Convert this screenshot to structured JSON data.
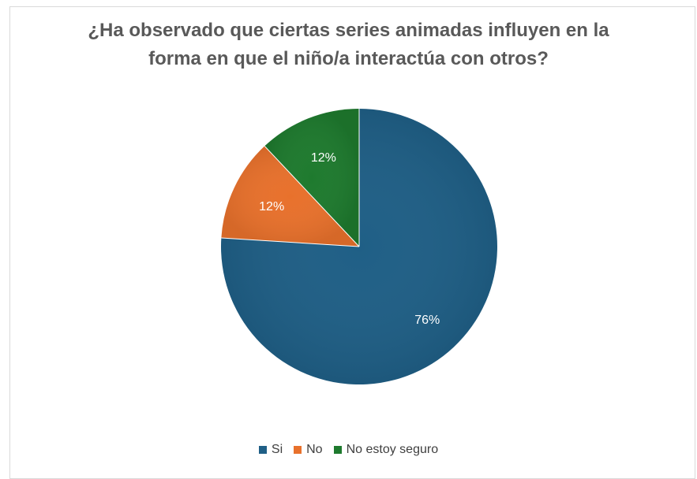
{
  "chart_data": {
    "type": "pie",
    "title_lines": [
      "¿Ha observado que ciertas series animadas influyen en la",
      "forma en que el niño/a interactúa con otros?"
    ],
    "categories": [
      "Si",
      "No",
      "No estoy seguro"
    ],
    "values": [
      76,
      12,
      12
    ],
    "data_labels": [
      "76%",
      "12%",
      "12%"
    ],
    "colors": [
      "#1f5f86",
      "#e8712c",
      "#1e7a2e"
    ],
    "legend_position": "bottom"
  }
}
